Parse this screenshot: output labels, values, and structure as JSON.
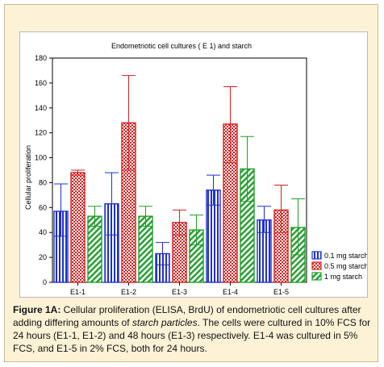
{
  "chart_data": {
    "type": "bar",
    "title": "Endometriotic cell cultures ( E 1) and starch",
    "xlabel": "",
    "ylabel": "Cellular proliferation",
    "ylim": [
      0,
      180
    ],
    "yticks": [
      0,
      20,
      40,
      60,
      80,
      100,
      120,
      140,
      160,
      180
    ],
    "categories": [
      "E1-1",
      "E1-2",
      "E1-3",
      "E1-4",
      "E1-5"
    ],
    "grid": false,
    "legend_position": "bottom-right",
    "series": [
      {
        "name": "0.1 mg starch",
        "color": "#1f2fd0",
        "pattern": "vertical-lines",
        "values": [
          57,
          63,
          23,
          74,
          50
        ],
        "lower": [
          37,
          38,
          14,
          62,
          40
        ],
        "upper": [
          79,
          88,
          32,
          86,
          61
        ]
      },
      {
        "name": "0.5 mg starch",
        "color": "#d62020",
        "pattern": "checker",
        "values": [
          88,
          128,
          48,
          127,
          58
        ],
        "lower": [
          86,
          90,
          38,
          96,
          40
        ],
        "upper": [
          90,
          166,
          58,
          157,
          78
        ]
      },
      {
        "name": "1 mg starch",
        "color": "#1f9e2a",
        "pattern": "diagonal-lines",
        "values": [
          53,
          53,
          42,
          91,
          44
        ],
        "lower": [
          45,
          45,
          30,
          65,
          22
        ],
        "upper": [
          61,
          61,
          54,
          117,
          67
        ]
      }
    ]
  },
  "caption": {
    "label": "Figure 1A:",
    "part1": " Cellular proliferation (ELISA, BrdU) of endometriotic cell cultures after adding differing amounts of ",
    "italic": "starch particles",
    "part2": ". The cells were cultured in 10% FCS for 24 hours (E1-1, E1-2) and 48 hours (E1-3) respectively. E1-4 was cultured in 5% FCS, and E1-5 in 2% FCS, both for 24 hours."
  }
}
